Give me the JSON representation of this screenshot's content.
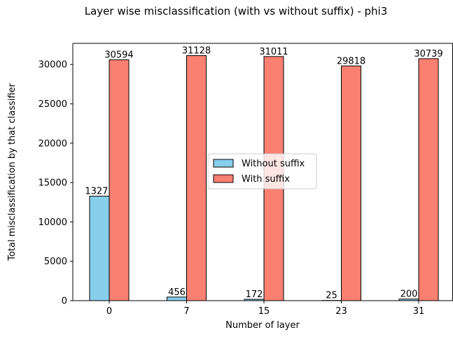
{
  "chart_data": {
    "type": "bar",
    "title": "Layer wise misclassification (with vs without suffix) - phi3",
    "xlabel": "Number of layer",
    "ylabel": "Total misclassification by that classifier",
    "categories": [
      "0",
      "7",
      "15",
      "23",
      "31"
    ],
    "series": [
      {
        "name": "Without suffix",
        "color": "#87ceeb",
        "values": [
          13273,
          456,
          172,
          25,
          200
        ]
      },
      {
        "name": "With suffix",
        "color": "#fa8072",
        "values": [
          30594,
          31128,
          31011,
          29818,
          30739
        ]
      }
    ],
    "ylim": [
      0,
      32685
    ],
    "yticks": [
      0,
      5000,
      10000,
      15000,
      20000,
      25000,
      30000
    ],
    "grid": false,
    "legend_position": "center"
  }
}
